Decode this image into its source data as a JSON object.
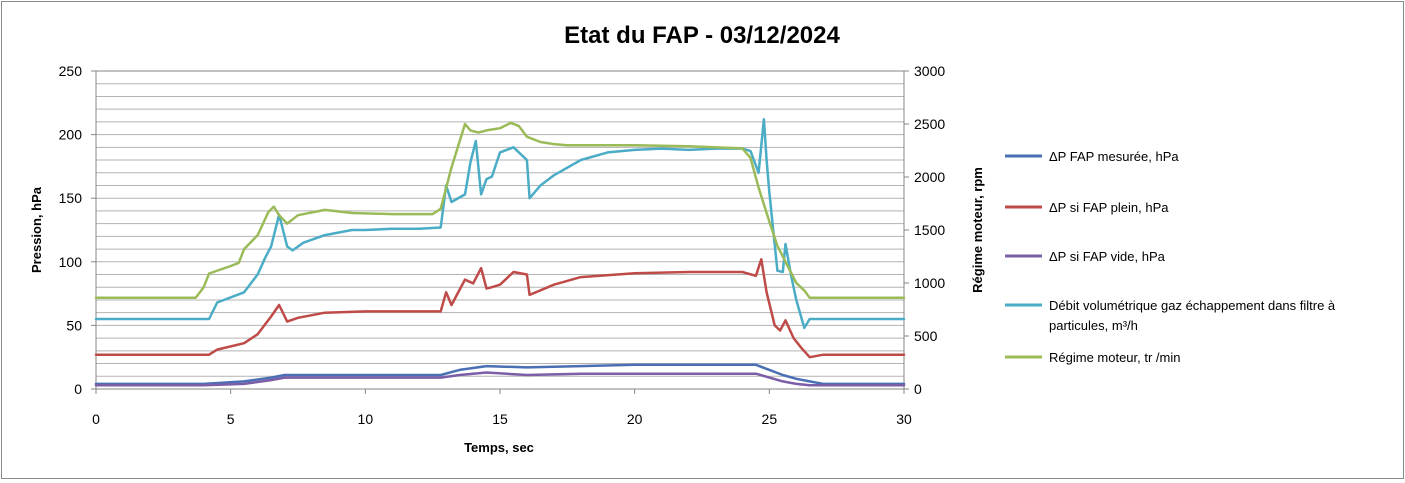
{
  "chart_data": {
    "type": "line",
    "title": "Etat du FAP - 03/12/2024",
    "xlabel": "Temps, sec",
    "ylabel": "Pression, hPa",
    "y2label": "Régime moteur, rpm",
    "xlim": [
      0,
      30
    ],
    "ylim": [
      0,
      250
    ],
    "y2lim": [
      0,
      3000
    ],
    "x_ticks": [
      "0",
      "5",
      "10",
      "15",
      "20",
      "25",
      "30"
    ],
    "y_ticks": [
      "0",
      "50",
      "100",
      "150",
      "200",
      "250"
    ],
    "y2_ticks": [
      "0",
      "500",
      "1000",
      "1500",
      "2000",
      "2500",
      "3000"
    ],
    "grid": true,
    "legend_position": "right",
    "series": [
      {
        "name": "ΔP FAP mesurée,  hPa",
        "axis": "left",
        "color": "#4a6fb5",
        "x": [
          0,
          4,
          5.5,
          6.5,
          7,
          8,
          10,
          12.8,
          13.5,
          14.5,
          16,
          18,
          20,
          22,
          24.5,
          25.5,
          26,
          26.5,
          27,
          30
        ],
        "y": [
          4,
          4,
          6,
          9,
          11,
          11,
          11,
          11,
          15,
          18,
          17,
          18,
          19,
          19,
          19,
          11,
          8,
          6,
          4,
          4
        ]
      },
      {
        "name": "ΔP si FAP plein, hPa",
        "axis": "left",
        "color": "#be4b48",
        "x": [
          0,
          4.2,
          4.5,
          5.5,
          6,
          6.5,
          6.8,
          7.1,
          7.5,
          8.5,
          10,
          12.8,
          13,
          13.2,
          13.7,
          14,
          14.3,
          14.5,
          14.7,
          15,
          15.5,
          16,
          16.1,
          17,
          18,
          20,
          22,
          24,
          24.5,
          24.7,
          24.9,
          25.2,
          25.4,
          25.6,
          25.9,
          26.2,
          26.5,
          27,
          30
        ],
        "y": [
          27,
          27,
          31,
          36,
          43,
          57,
          66,
          53,
          56,
          60,
          61,
          61,
          76,
          66,
          86,
          83,
          95,
          79,
          80,
          82,
          92,
          90,
          74,
          82,
          88,
          91,
          92,
          92,
          89,
          102,
          76,
          50,
          46,
          54,
          40,
          32,
          25,
          27,
          27
        ]
      },
      {
        "name": "ΔP si FAP vide, hPa",
        "axis": "left",
        "color": "#7b5ea7",
        "x": [
          0,
          4,
          5.5,
          6.5,
          7,
          8,
          10,
          12.8,
          13.5,
          14.5,
          16,
          18,
          20,
          22,
          24.5,
          25.5,
          26,
          26.5,
          27,
          30
        ],
        "y": [
          3,
          3,
          4,
          7,
          9,
          9,
          9,
          9,
          11,
          13,
          11,
          12,
          12,
          12,
          12,
          6,
          4,
          3,
          3,
          3
        ]
      },
      {
        "name": "Débit volumétrique gaz échappement dans filtre à particules,  m³/h",
        "axis": "left",
        "color": "#4bacc6",
        "x": [
          0,
          4.2,
          4.5,
          5.5,
          6,
          6.3,
          6.5,
          6.8,
          7.1,
          7.3,
          7.7,
          8.5,
          9.5,
          10,
          11,
          12,
          12.8,
          13,
          13.2,
          13.7,
          13.9,
          14.1,
          14.3,
          14.5,
          14.7,
          15,
          15.5,
          16,
          16.1,
          16.5,
          17,
          18,
          19,
          20,
          21,
          22,
          23,
          24,
          24.3,
          24.6,
          24.8,
          24.9,
          25,
          25.3,
          25.5,
          25.6,
          25.8,
          26,
          26.3,
          26.5,
          27,
          30
        ],
        "y": [
          55,
          55,
          68,
          76,
          90,
          104,
          112,
          137,
          112,
          109,
          115,
          121,
          125,
          125,
          126,
          126,
          127,
          160,
          147,
          153,
          178,
          195,
          153,
          165,
          167,
          186,
          190,
          180,
          150,
          160,
          168,
          180,
          186,
          188,
          189,
          188,
          189,
          189,
          187,
          170,
          212,
          180,
          155,
          93,
          92,
          114,
          90,
          70,
          48,
          55,
          55,
          55
        ]
      },
      {
        "name": "Régime moteur, tr /min",
        "axis": "right",
        "color": "#9bbb59",
        "x": [
          0,
          3.7,
          4,
          4.2,
          5,
          5.3,
          5.5,
          6,
          6.4,
          6.6,
          6.8,
          7.1,
          7.5,
          8.5,
          9.5,
          11,
          12.5,
          12.8,
          13.2,
          13.7,
          13.9,
          14.2,
          14.5,
          15,
          15.4,
          15.7,
          16,
          16.5,
          17,
          17.5,
          18,
          20,
          22,
          24,
          24.3,
          24.6,
          25,
          25.3,
          25.5,
          26,
          26.3,
          26.5,
          27,
          30
        ],
        "y": [
          860,
          860,
          960,
          1090,
          1160,
          1190,
          1320,
          1450,
          1670,
          1720,
          1640,
          1560,
          1640,
          1690,
          1660,
          1650,
          1650,
          1700,
          2090,
          2500,
          2440,
          2420,
          2440,
          2460,
          2510,
          2480,
          2380,
          2330,
          2310,
          2300,
          2300,
          2300,
          2290,
          2270,
          2180,
          1900,
          1580,
          1350,
          1250,
          1000,
          930,
          860,
          860,
          860
        ]
      }
    ]
  }
}
